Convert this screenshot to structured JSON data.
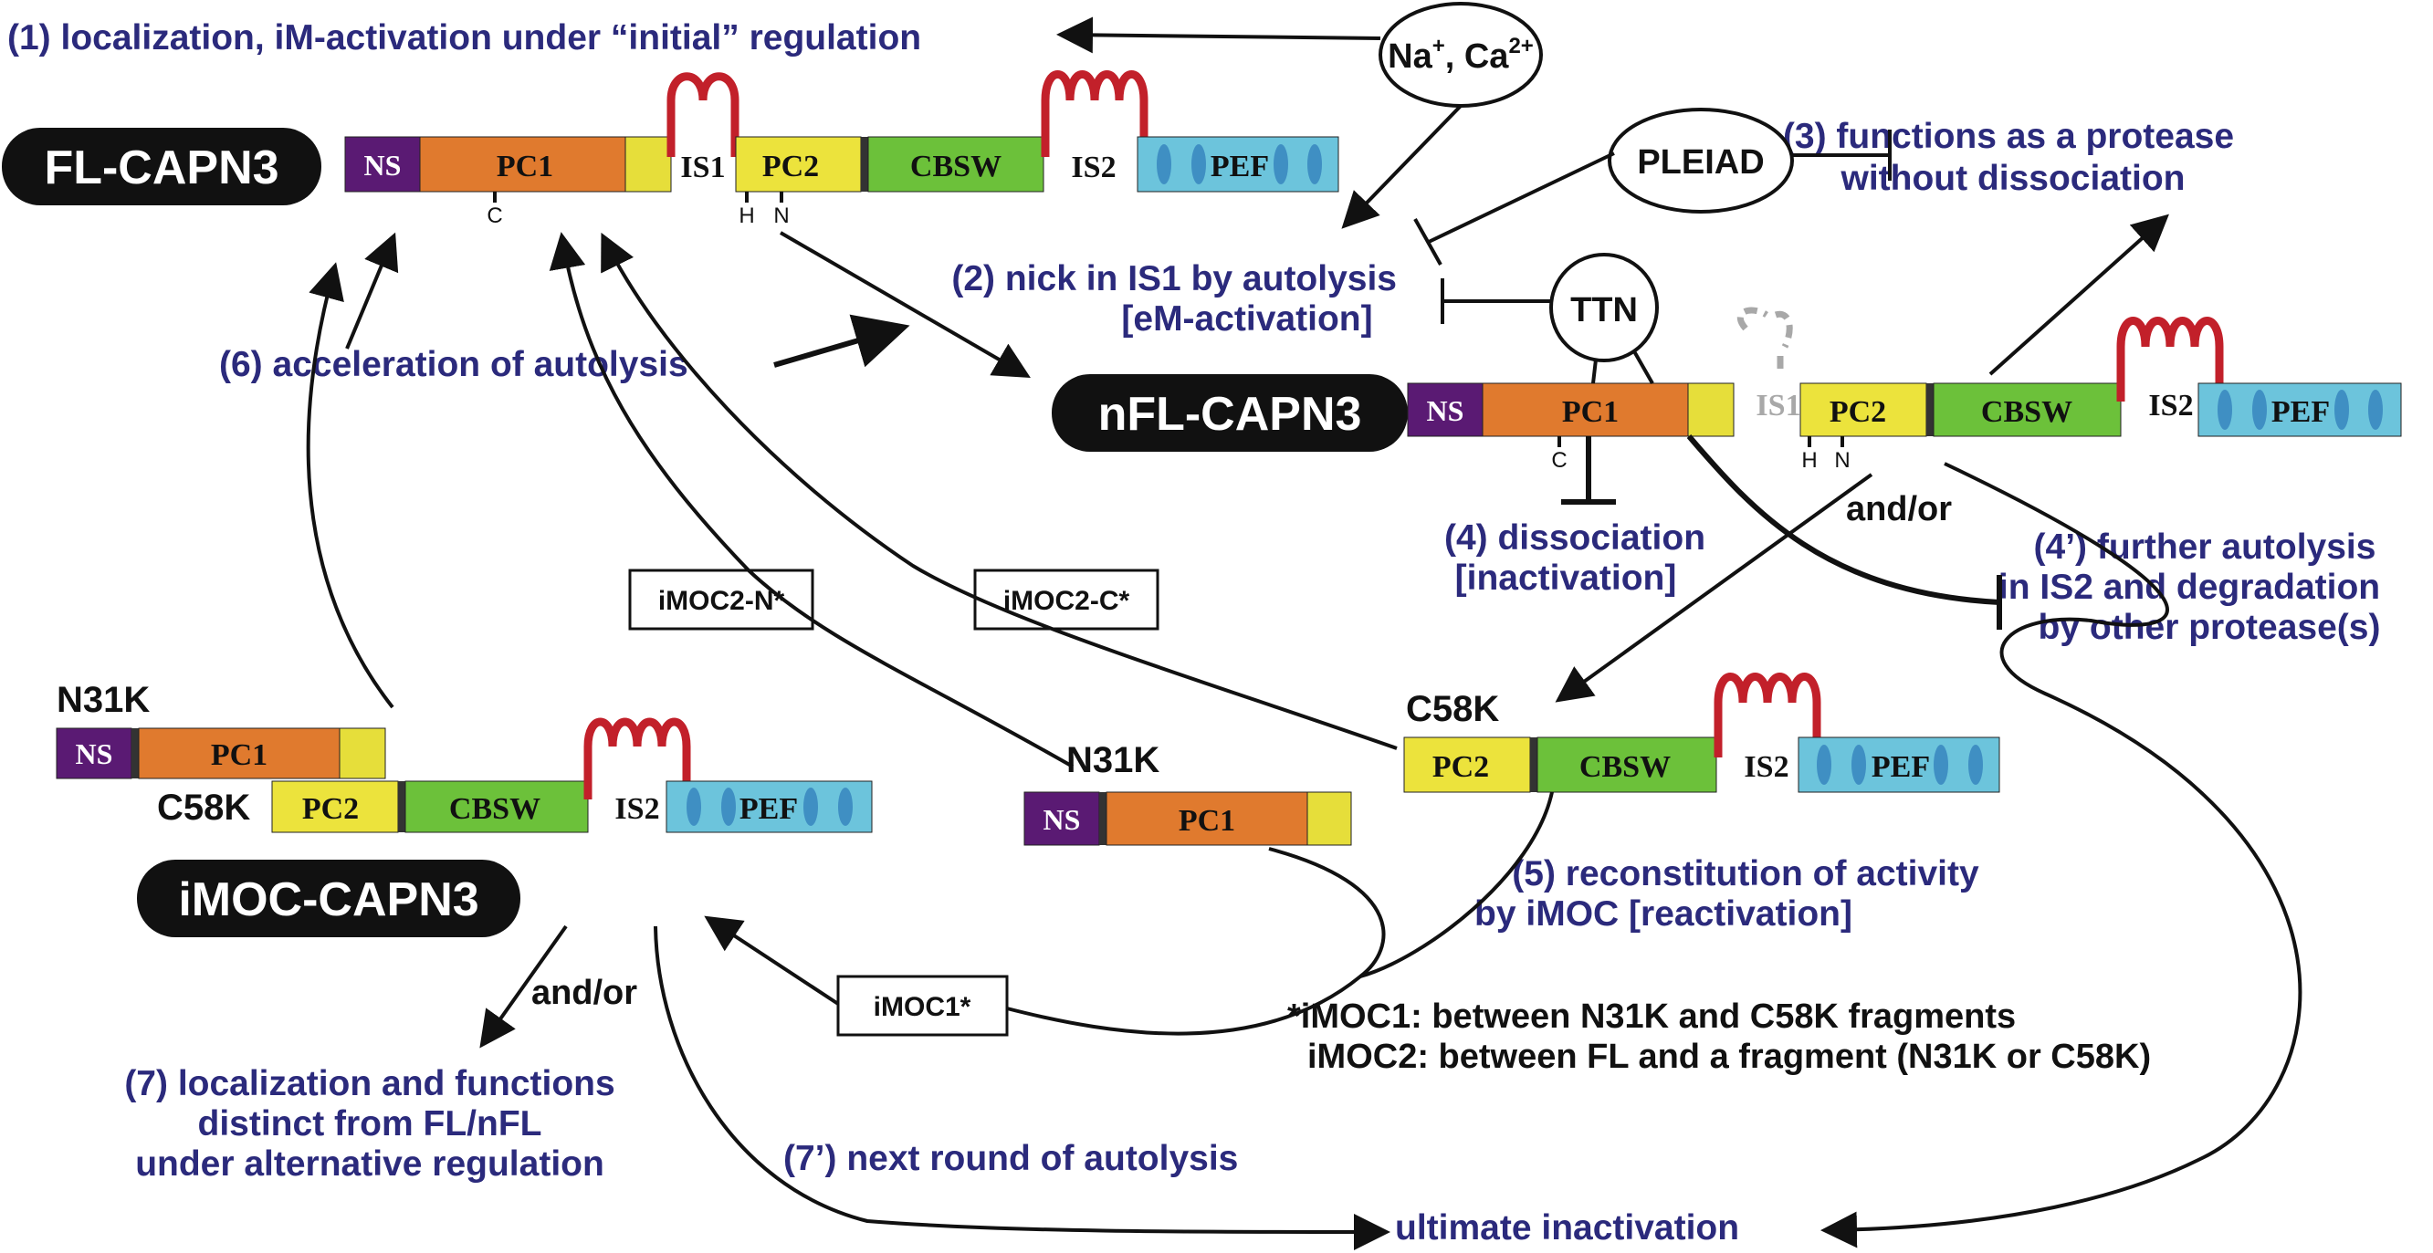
{
  "labels": {
    "step1": "(1) localization, iM-activation under “initial” regulation",
    "step2_a": "(2) nick in IS1 by autolysis",
    "step2_b": "[eM-activation]",
    "step3_a": "(3) functions as a protease",
    "step3_b": "without dissociation",
    "step4_a": "(4) dissociation",
    "step4_b": "[inactivation]",
    "step4p_a": "(4’) further autolysis",
    "step4p_b": "in IS2 and degradation",
    "step4p_c": "by other protease(s)",
    "step5_a": "(5) reconstitution of activity",
    "step5_b": "by iMOC [reactivation]",
    "step6": "(6) acceleration of autolysis",
    "step7_a": "(7) localization and functions",
    "step7_b": "distinct from FL/nFL",
    "step7_c": "under alternative regulation",
    "step7p": "(7’) next round of autolysis",
    "ultimate": "ultimate inactivation",
    "andor_1": "and/or",
    "andor_2": "and/or",
    "note_1": "*iMOC1: between N31K and C58K fragments",
    "note_2": "iMOC2: between FL and a fragment (N31K or C58K)"
  },
  "forms": {
    "fl": "FL-CAPN3",
    "nfl": "nFL-CAPN3",
    "imoc": "iMOC-CAPN3"
  },
  "regulators": {
    "ions_base": "Na",
    "ions_sup1": "+",
    "ions_sep": ", Ca",
    "ions_sup2": "2+",
    "pleiad": "PLEIAD",
    "ttn": "TTN"
  },
  "domains": {
    "ns": "NS",
    "pc1": "PC1",
    "is1": "IS1",
    "pc2": "PC2",
    "cbsw": "CBSW",
    "is2": "IS2",
    "pef": "PEF"
  },
  "residues": {
    "c": "C",
    "h": "H",
    "n": "N"
  },
  "fragments": {
    "n31k": "N31K",
    "c58k": "C58K"
  },
  "boxes": {
    "imoc2_n": "iMOC2-N*",
    "imoc2_c": "iMOC2-C*",
    "imoc1": "iMOC1*"
  },
  "colors": {
    "ns": "#5a1a73",
    "pc1": "#e07a2e",
    "pc1_end": "#e6de3a",
    "pc2": "#ece33c",
    "cbsw": "#6cc13a",
    "pef": "#6cc4dc",
    "pef_oval": "#3f8fc3",
    "loop": "#c2202a",
    "step_text": "#2b2a7c",
    "pill": "#111111"
  }
}
